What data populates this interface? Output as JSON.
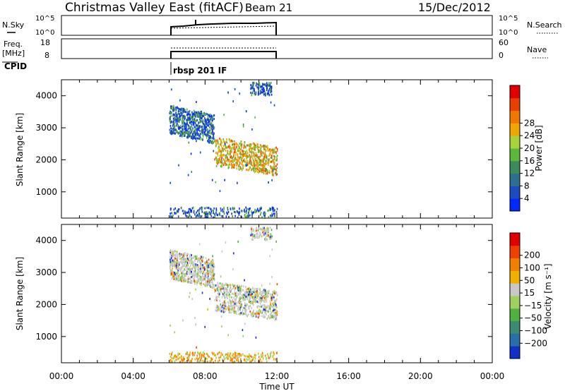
{
  "header": {
    "title": "Christmas Valley East (fitACF)",
    "beam": "Beam 21",
    "date": "15/Dec/2012"
  },
  "nsky_panel": {
    "left_label": "N.Sky",
    "left_ticks": [
      "10^5",
      "10^0"
    ],
    "right_ticks": [
      "10^5",
      "10^0"
    ],
    "right_label": "N.Search"
  },
  "freq_panel": {
    "left_label_1": "Freq.",
    "left_label_2": "[MHz]",
    "left_ticks": [
      "18",
      "8"
    ],
    "right_ticks": [
      "60",
      "0"
    ],
    "right_label": "Nave"
  },
  "cpid": {
    "label": "CPID",
    "program": "rbsp 201 IF"
  },
  "chart_data": [
    {
      "type": "heatmap",
      "title": "",
      "ylabel": "Slant Range [km]",
      "ylim": [
        180,
        4500
      ],
      "yticks": [
        1000,
        2000,
        3000,
        4000
      ],
      "xlim": [
        0,
        24
      ],
      "colorbar": {
        "label": "Power [dB]",
        "ticks": [
          "28",
          "24",
          "20",
          "16",
          "12",
          "8",
          "4"
        ],
        "colors": [
          "#0028ff",
          "#1a4cc0",
          "#2d6f8f",
          "#3d8a5a",
          "#5cb83a",
          "#a8d23a",
          "#f0a800",
          "#f07800",
          "#e84000",
          "#e00000"
        ]
      },
      "data_window_hours": [
        6.0,
        12.0
      ],
      "echo_bands_km": [
        {
          "t_start": 6.0,
          "t_end": 8.5,
          "range_top": 3700,
          "range_bottom": 2800
        },
        {
          "t_start": 8.5,
          "t_end": 12.0,
          "range_top": 2700,
          "range_bottom": 1800
        },
        {
          "t_start": 10.5,
          "t_end": 11.7,
          "range_top": 4400,
          "range_bottom": 4000
        },
        {
          "t_start": 6.0,
          "t_end": 12.0,
          "range_top": 500,
          "range_bottom": 180
        }
      ]
    },
    {
      "type": "heatmap",
      "title": "",
      "ylabel": "Slant Range [km]",
      "ylim": [
        180,
        4500
      ],
      "yticks": [
        1000,
        2000,
        3000,
        4000
      ],
      "xlim": [
        0,
        24
      ],
      "xlabel": "Time UT",
      "xticks": [
        "00:00",
        "04:00",
        "08:00",
        "12:00",
        "16:00",
        "20:00",
        "00:00"
      ],
      "colorbar": {
        "label": "Velocity [m s⁻¹]",
        "ticks": [
          "200",
          "100",
          "50",
          "15",
          "−15",
          "−50",
          "−100",
          "−200"
        ],
        "colors": [
          "#1030c8",
          "#2a6ea8",
          "#3c8a70",
          "#50b040",
          "#a0d060",
          "#c8c8c8",
          "#f0b000",
          "#f08000",
          "#f04000",
          "#e00000"
        ]
      },
      "data_window_hours": [
        6.0,
        12.0
      ]
    }
  ]
}
